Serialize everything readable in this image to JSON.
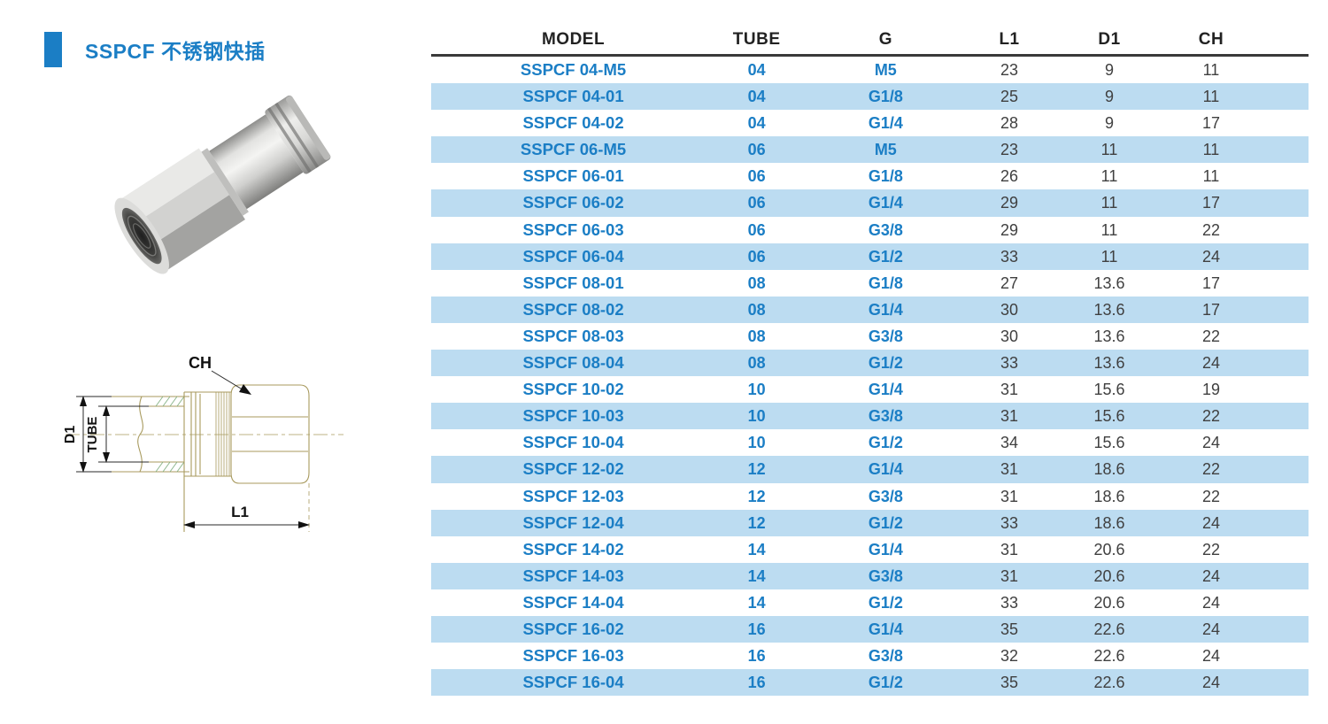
{
  "header": {
    "title": "SSPCF 不锈钢快插"
  },
  "drawing": {
    "labels": {
      "ch": "CH",
      "d1": "D1",
      "tube": "TUBE",
      "l1": "L1"
    }
  },
  "table": {
    "columns": [
      "MODEL",
      "TUBE",
      "G",
      "L1",
      "D1",
      "CH"
    ],
    "column_keys": [
      "model",
      "tube",
      "g",
      "l1",
      "d1",
      "ch"
    ],
    "rows": [
      [
        "SSPCF 04-M5",
        "04",
        "M5",
        "23",
        "9",
        "11"
      ],
      [
        "SSPCF 04-01",
        "04",
        "G1/8",
        "25",
        "9",
        "11"
      ],
      [
        "SSPCF 04-02",
        "04",
        "G1/4",
        "28",
        "9",
        "17"
      ],
      [
        "SSPCF 06-M5",
        "06",
        "M5",
        "23",
        "11",
        "11"
      ],
      [
        "SSPCF 06-01",
        "06",
        "G1/8",
        "26",
        "11",
        "11"
      ],
      [
        "SSPCF 06-02",
        "06",
        "G1/4",
        "29",
        "11",
        "17"
      ],
      [
        "SSPCF 06-03",
        "06",
        "G3/8",
        "29",
        "11",
        "22"
      ],
      [
        "SSPCF 06-04",
        "06",
        "G1/2",
        "33",
        "11",
        "24"
      ],
      [
        "SSPCF 08-01",
        "08",
        "G1/8",
        "27",
        "13.6",
        "17"
      ],
      [
        "SSPCF 08-02",
        "08",
        "G1/4",
        "30",
        "13.6",
        "17"
      ],
      [
        "SSPCF 08-03",
        "08",
        "G3/8",
        "30",
        "13.6",
        "22"
      ],
      [
        "SSPCF 08-04",
        "08",
        "G1/2",
        "33",
        "13.6",
        "24"
      ],
      [
        "SSPCF 10-02",
        "10",
        "G1/4",
        "31",
        "15.6",
        "19"
      ],
      [
        "SSPCF 10-03",
        "10",
        "G3/8",
        "31",
        "15.6",
        "22"
      ],
      [
        "SSPCF 10-04",
        "10",
        "G1/2",
        "34",
        "15.6",
        "24"
      ],
      [
        "SSPCF 12-02",
        "12",
        "G1/4",
        "31",
        "18.6",
        "22"
      ],
      [
        "SSPCF 12-03",
        "12",
        "G3/8",
        "31",
        "18.6",
        "22"
      ],
      [
        "SSPCF 12-04",
        "12",
        "G1/2",
        "33",
        "18.6",
        "24"
      ],
      [
        "SSPCF 14-02",
        "14",
        "G1/4",
        "31",
        "20.6",
        "22"
      ],
      [
        "SSPCF 14-03",
        "14",
        "G3/8",
        "31",
        "20.6",
        "24"
      ],
      [
        "SSPCF 14-04",
        "14",
        "G1/2",
        "33",
        "20.6",
        "24"
      ],
      [
        "SSPCF 16-02",
        "16",
        "G1/4",
        "35",
        "22.6",
        "24"
      ],
      [
        "SSPCF 16-03",
        "16",
        "G3/8",
        "32",
        "22.6",
        "24"
      ],
      [
        "SSPCF 16-04",
        "16",
        "G1/2",
        "35",
        "22.6",
        "24"
      ]
    ]
  },
  "colors": {
    "accent": "#1b7ec5",
    "row_alt": "#bcdcf1",
    "header_text": "#222222",
    "num_text": "#404040",
    "rule": "#3a3a3a",
    "drawing_line": "#a89a5e",
    "hatch": "#86b286"
  }
}
